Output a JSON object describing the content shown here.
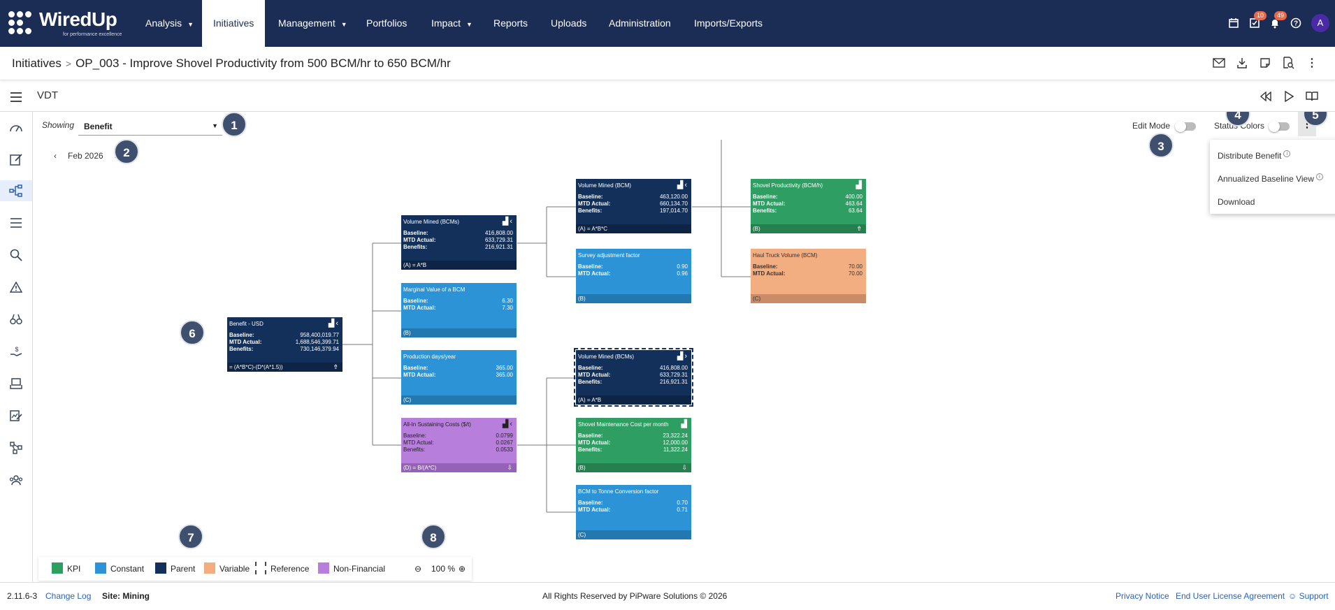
{
  "brand": {
    "name": "WiredUp",
    "tagline": "for performance excellence"
  },
  "nav": {
    "items": [
      {
        "label": "Analysis",
        "dropdown": true
      },
      {
        "label": "Initiatives",
        "active": true
      },
      {
        "label": "Management",
        "dropdown": true
      },
      {
        "label": "Portfolios"
      },
      {
        "label": "Impact",
        "dropdown": true
      },
      {
        "label": "Reports"
      },
      {
        "label": "Uploads"
      },
      {
        "label": "Administration"
      },
      {
        "label": "Imports/Exports"
      }
    ],
    "tasks_badge": "10",
    "notifications_badge": "49",
    "avatar_initial": "A"
  },
  "breadcrumb": {
    "root": "Initiatives",
    "current": "OP_003 - Improve Shovel Productivity from 500 BCM/hr to 650 BCM/hr"
  },
  "vdt": {
    "title": "VDT"
  },
  "controls": {
    "showing_label": "Showing",
    "showing_value": "Benefit",
    "date": "Feb 2026",
    "edit_mode_label": "Edit Mode",
    "edit_mode_on": false,
    "status_colors_label": "Status Colors",
    "status_colors_on": false
  },
  "menu": {
    "distribute_benefit": "Distribute Benefit",
    "distribute_benefit_on": true,
    "annualized_baseline": "Annualized Baseline View",
    "annualized_baseline_on": true,
    "download": "Download"
  },
  "callouts": [
    "1",
    "2",
    "3",
    "4",
    "5",
    "6",
    "7",
    "8"
  ],
  "nodes": {
    "benefit": {
      "title": "Benefit - USD",
      "baseline_label": "Baseline:",
      "baseline": "958,400,019.77",
      "mtd_label": "MTD Actual:",
      "mtd": "1,688,546,399.71",
      "benefits_label": "Benefits:",
      "benefits": "730,146,379.94",
      "formula": "= (A*B*C)-(D*(A*1.5))"
    },
    "vol_bcms": {
      "title": "Volume Mined (BCMs)",
      "baseline_label": "Baseline:",
      "baseline": "416,808.00",
      "mtd_label": "MTD Actual:",
      "mtd": "633,729.31",
      "benefits_label": "Benefits:",
      "benefits": "216,921.31",
      "formula": "(A) = A*B"
    },
    "marginal": {
      "title": "Marginal Value of a BCM",
      "baseline_label": "Baseline:",
      "baseline": "6.30",
      "mtd_label": "MTD Actual:",
      "mtd": "7.30",
      "formula": "(B)"
    },
    "prod_days": {
      "title": "Production days/year",
      "baseline_label": "Baseline:",
      "baseline": "365.00",
      "mtd_label": "MTD Actual:",
      "mtd": "365.00",
      "formula": "(C)"
    },
    "aisc": {
      "title": "All-In Sustaining Costs ($/t)",
      "baseline_label": "Baseline:",
      "baseline": "0.0799",
      "mtd_label": "MTD Actual:",
      "mtd": "0.0267",
      "benefits_label": "Benefits:",
      "benefits": "0.0533",
      "formula": "(D) = B/(A*C)"
    },
    "vol_bcm": {
      "title": "Volume Mined (BCM)",
      "baseline_label": "Baseline:",
      "baseline": "463,120.00",
      "mtd_label": "MTD Actual:",
      "mtd": "660,134.70",
      "benefits_label": "Benefits:",
      "benefits": "197,014.70",
      "formula": "(A) = A*B*C"
    },
    "survey": {
      "title": "Survey adjustment factor",
      "baseline_label": "Baseline:",
      "baseline": "0.90",
      "mtd_label": "MTD Actual:",
      "mtd": "0.96",
      "formula": "(B)"
    },
    "vol_bcms_ref": {
      "title": "Volume Mined (BCMs)",
      "baseline_label": "Baseline:",
      "baseline": "416,808.00",
      "mtd_label": "MTD Actual:",
      "mtd": "633,729.31",
      "benefits_label": "Benefits:",
      "benefits": "216,921.31",
      "formula": "(A) = A*B"
    },
    "shovel_maint": {
      "title": "Shovel Maintenance Cost per month",
      "baseline_label": "Baseline:",
      "baseline": "23,322.24",
      "mtd_label": "MTD Actual:",
      "mtd": "12,000.00",
      "benefits_label": "Benefits:",
      "benefits": "11,322.24",
      "formula": "(B)"
    },
    "bcm_tonne": {
      "title": "BCM to Tonne Conversion factor",
      "baseline_label": "Baseline:",
      "baseline": "0.70",
      "mtd_label": "MTD Actual:",
      "mtd": "0.71",
      "formula": "(C)"
    },
    "shovel_prod": {
      "title": "Shovel Productivity (BCM/h)",
      "baseline_label": "Baseline:",
      "baseline": "400.00",
      "mtd_label": "MTD Actual:",
      "mtd": "463.64",
      "benefits_label": "Benefits:",
      "benefits": "63.64",
      "formula": "(B)"
    },
    "haul_truck": {
      "title": "Haul Truck Volume (BCM)",
      "baseline_label": "Baseline:",
      "baseline": "70.00",
      "mtd_label": "MTD Actual:",
      "mtd": "70.00",
      "formula": "(C)"
    }
  },
  "legend": {
    "kpi": "KPI",
    "constant": "Constant",
    "parent": "Parent",
    "variable": "Variable",
    "reference": "Reference",
    "nonfin": "Non-Financial",
    "colors": {
      "kpi": "#2e9e62",
      "constant": "#2b93d6",
      "parent": "#13305a",
      "variable": "#f2ad80",
      "nonfin": "#b77edc"
    },
    "zoom": "100 %"
  },
  "footer": {
    "version": "2.11.6-3",
    "changelog": "Change Log",
    "site": "Site: Mining",
    "copyright": "All Rights Reserved by PiPware Solutions © 2026",
    "privacy": "Privacy Notice",
    "eula": "End User License Agreement",
    "support": "Support"
  }
}
